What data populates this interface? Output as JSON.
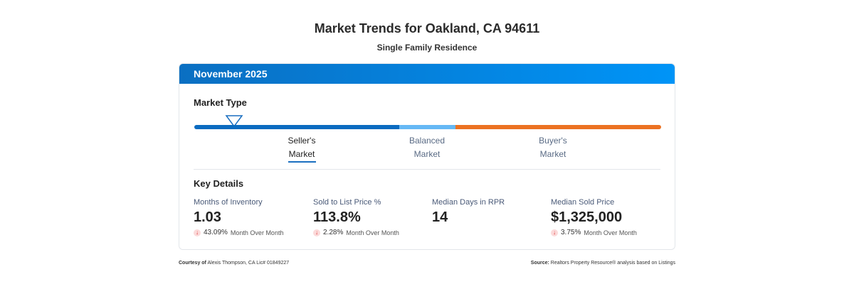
{
  "title": "Market Trends for Oakland, CA 94611",
  "subtitle": "Single Family Residence",
  "card": {
    "period": "November 2025",
    "market_type_label": "Market Type",
    "market_position_pct": 8.5,
    "segments": [
      {
        "label_1": "Seller's",
        "label_2": "Market",
        "color": "#0a6bc0"
      },
      {
        "label_1": "Balanced",
        "label_2": "Market",
        "color": "#66b8f5"
      },
      {
        "label_1": "Buyer's",
        "label_2": "Market",
        "color": "#ec7222"
      }
    ],
    "key_details_label": "Key Details",
    "metrics": [
      {
        "title": "Months of Inventory",
        "value": "1.03",
        "change": "43.09%",
        "change_label": "Month Over Month",
        "direction": "down"
      },
      {
        "title": "Sold to List Price %",
        "value": "113.8%",
        "change": "2.28%",
        "change_label": "Month Over Month",
        "direction": "down"
      },
      {
        "title": "Median Days in RPR",
        "value": "14"
      },
      {
        "title": "Median Sold Price",
        "value": "$1,325,000",
        "change": "3.75%",
        "change_label": "Month Over Month",
        "direction": "down"
      }
    ]
  },
  "footer": {
    "courtesy_label": "Courtesy of",
    "courtesy": "Alexis Thompson, CA Lic# 01849227",
    "source_label": "Source:",
    "source": "Realtors Property Resource® analysis based on Listings"
  }
}
